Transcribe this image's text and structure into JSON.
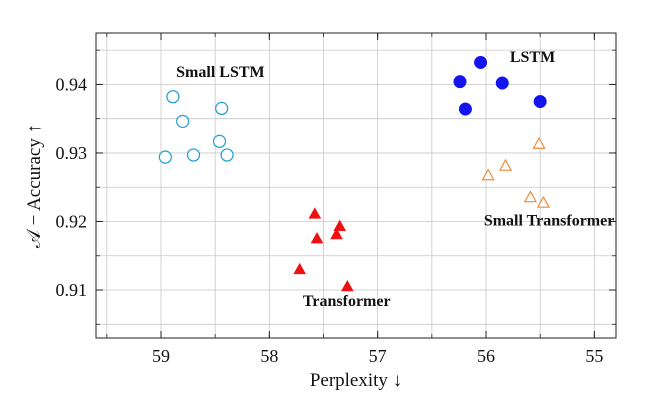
{
  "chart_data": {
    "type": "scatter",
    "xlabel": "Perplexity ↓",
    "ylabel": "𝒜 − Accuracy ↑",
    "x_reversed": true,
    "xlim": [
      59.6,
      54.8
    ],
    "ylim": [
      0.903,
      0.9475
    ],
    "xticks": [
      {
        "value": 59,
        "label": "59"
      },
      {
        "value": 58,
        "label": "58"
      },
      {
        "value": 57,
        "label": "57"
      },
      {
        "value": 56,
        "label": "56"
      },
      {
        "value": 55,
        "label": "55"
      }
    ],
    "yticks": [
      {
        "value": 0.91,
        "label": "0.91"
      },
      {
        "value": 0.92,
        "label": "0.92"
      },
      {
        "value": 0.93,
        "label": "0.93"
      },
      {
        "value": 0.94,
        "label": "0.94"
      }
    ],
    "grid": true,
    "series": [
      {
        "name": "Small LSTM",
        "marker": "circle-open",
        "color": "#29a3d6",
        "points": [
          [
            58.89,
            0.9382
          ],
          [
            58.8,
            0.9346
          ],
          [
            58.44,
            0.9365
          ],
          [
            58.96,
            0.9294
          ],
          [
            58.7,
            0.9297
          ],
          [
            58.46,
            0.9317
          ],
          [
            58.39,
            0.9297
          ]
        ]
      },
      {
        "name": "LSTM",
        "marker": "circle-filled",
        "color": "#1414ee",
        "points": [
          [
            56.05,
            0.9432
          ],
          [
            56.24,
            0.9404
          ],
          [
            55.85,
            0.9402
          ],
          [
            56.19,
            0.9364
          ],
          [
            55.5,
            0.9375
          ]
        ]
      },
      {
        "name": "Small Transformer",
        "marker": "triangle-open",
        "color": "#f08c3c",
        "points": [
          [
            55.51,
            0.9313
          ],
          [
            55.82,
            0.9281
          ],
          [
            55.98,
            0.9267
          ],
          [
            55.59,
            0.9235
          ],
          [
            55.47,
            0.9227
          ]
        ]
      },
      {
        "name": "Transformer",
        "marker": "triangle-filled",
        "color": "#ee1111",
        "points": [
          [
            57.58,
            0.9211
          ],
          [
            57.35,
            0.9193
          ],
          [
            57.38,
            0.9181
          ],
          [
            57.56,
            0.9175
          ],
          [
            57.72,
            0.913
          ],
          [
            57.28,
            0.9105
          ]
        ]
      }
    ],
    "annotations": [
      {
        "text": "Small LSTM",
        "x": 58.86,
        "y": 0.9411,
        "series": 0
      },
      {
        "text": "LSTM",
        "x": 55.78,
        "y": 0.9433,
        "series": 1
      },
      {
        "text": "Small Transformer",
        "x": 56.02,
        "y": 0.9194,
        "series": 2
      },
      {
        "text": "Transformer",
        "x": 57.69,
        "y": 0.9077,
        "series": 3
      }
    ]
  }
}
